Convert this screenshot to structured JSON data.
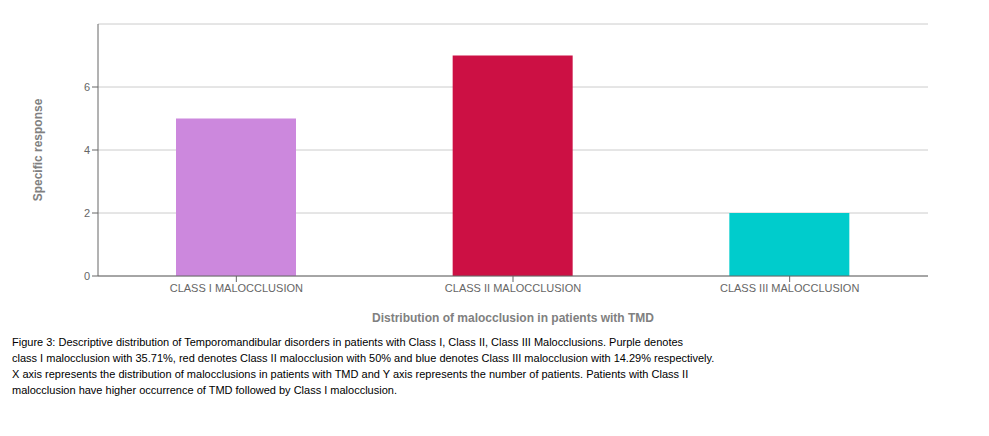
{
  "chart_data": {
    "type": "bar",
    "categories": [
      "CLASS I MALOCCLUSION",
      "CLASS II MALOCCLUSION",
      "CLASS III MALOCCLUSION"
    ],
    "values": [
      5,
      7,
      2
    ],
    "colors": [
      "#CC88DD",
      "#CC1044",
      "#00CCCC"
    ],
    "x_label": "Distribution of malocclusion in patients with TMD",
    "y_label": "Specific response",
    "ylim": [
      0,
      8
    ],
    "yticks": [
      0,
      2,
      4,
      6
    ],
    "grid": true,
    "annotations": [
      "Figure 3: Descriptive distribution of Temporomandibular disorders in patients with Class I, Class II, Class III Malocclusions. Purple denotes",
      "class I malocclusion with 35.71%, red denotes Class II malocclusion with 50% and blue denotes Class III malocclusion with 14.29% respectively.",
      "X axis represents the distribution of malocclusions in patients with TMD and Y axis represents the number of patients. Patients with Class II",
      "malocclusion have higher occurrence of TMD followed by Class I malocclusion."
    ]
  }
}
